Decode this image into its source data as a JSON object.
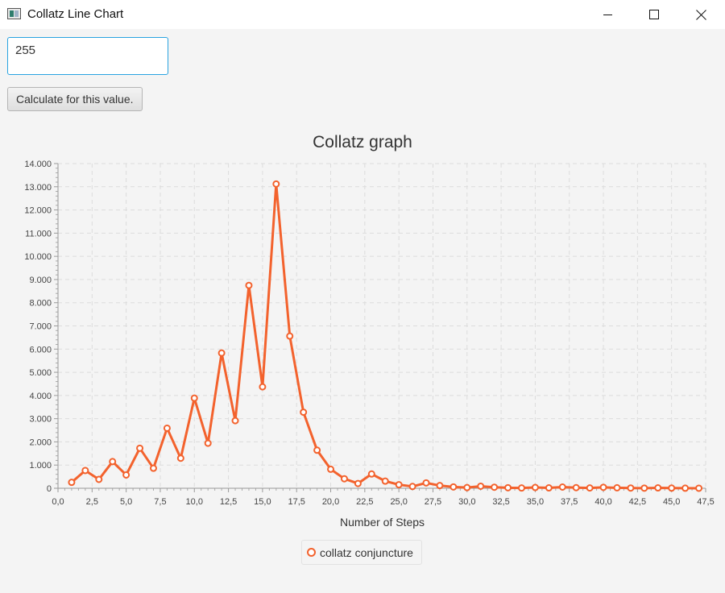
{
  "window": {
    "title": "Collatz Line Chart",
    "icon": "app-window-icon"
  },
  "input": {
    "value": "255"
  },
  "button": {
    "label": "Calculate for this value."
  },
  "colors": {
    "series": "#f3622d",
    "grid": "#dcdcdc",
    "focus": "#29a3e0"
  },
  "chart_data": {
    "type": "line",
    "title": "Collatz graph",
    "xlabel": "Number of Steps",
    "ylabel": "",
    "xlim": [
      0,
      47.5
    ],
    "ylim": [
      0,
      14000
    ],
    "xticks": [
      0,
      2.5,
      5,
      7.5,
      10,
      12.5,
      15,
      17.5,
      20,
      22.5,
      25,
      27.5,
      30,
      32.5,
      35,
      37.5,
      40,
      42.5,
      45,
      47.5
    ],
    "xtick_labels": [
      "0,0",
      "2,5",
      "5,0",
      "7,5",
      "10,0",
      "12,5",
      "15,0",
      "17,5",
      "20,0",
      "22,5",
      "25,0",
      "27,5",
      "30,0",
      "32,5",
      "35,0",
      "37,5",
      "40,0",
      "42,5",
      "45,0",
      "47,5"
    ],
    "yticks": [
      0,
      1000,
      2000,
      3000,
      4000,
      5000,
      6000,
      7000,
      8000,
      9000,
      10000,
      11000,
      12000,
      13000,
      14000
    ],
    "ytick_labels": [
      "0",
      "1.000",
      "2.000",
      "3.000",
      "4.000",
      "5.000",
      "6.000",
      "7.000",
      "8.000",
      "9.000",
      "10.000",
      "11.000",
      "12.000",
      "13.000",
      "14.000"
    ],
    "grid": true,
    "legend_position": "bottom-center",
    "series": [
      {
        "name": "collatz conjuncture",
        "x": [
          1,
          2,
          3,
          4,
          5,
          6,
          7,
          8,
          9,
          10,
          11,
          12,
          13,
          14,
          15,
          16,
          17,
          18,
          19,
          20,
          21,
          22,
          23,
          24,
          25,
          26,
          27,
          28,
          29,
          30,
          31,
          32,
          33,
          34,
          35,
          36,
          37,
          38,
          39,
          40,
          41,
          42,
          43,
          44,
          45,
          46,
          47
        ],
        "y": [
          255,
          766,
          383,
          1150,
          575,
          1726,
          863,
          2590,
          1295,
          3886,
          1943,
          5830,
          2915,
          8746,
          4373,
          13120,
          6560,
          3280,
          1640,
          820,
          410,
          205,
          616,
          308,
          154,
          77,
          232,
          116,
          58,
          29,
          88,
          44,
          22,
          11,
          34,
          17,
          52,
          26,
          13,
          40,
          20,
          10,
          5,
          16,
          8,
          4,
          2
        ]
      }
    ]
  }
}
